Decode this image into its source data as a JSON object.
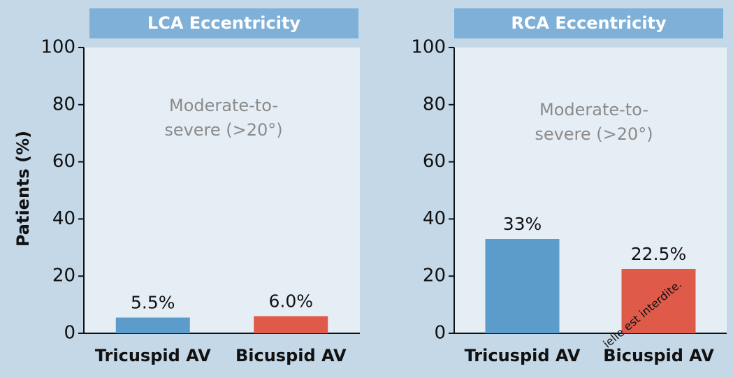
{
  "chart_data": [
    {
      "type": "bar",
      "title": "LCA Eccentricity",
      "ylabel": "Patients (%)",
      "annotation": [
        "Moderate-to-",
        "severe (>20°)"
      ],
      "categories": [
        "Tricuspid AV",
        "Bicuspid AV"
      ],
      "values": [
        5.5,
        6.0
      ],
      "value_labels": [
        "5.5%",
        "6.0%"
      ],
      "colors": [
        "#5b9ccb",
        "#e05a4a"
      ],
      "ylim": [
        0,
        100
      ],
      "yticks": [
        0,
        20,
        40,
        60,
        80,
        100
      ]
    },
    {
      "type": "bar",
      "title": "RCA Eccentricity",
      "annotation": [
        "Moderate-to-",
        "severe (>20°)"
      ],
      "categories": [
        "Tricuspid AV",
        "Bicuspid AV"
      ],
      "values": [
        33,
        22.5
      ],
      "value_labels": [
        "33%",
        "22.5%"
      ],
      "colors": [
        "#5b9ccb",
        "#e05a4a"
      ],
      "ylim": [
        0,
        100
      ],
      "yticks": [
        0,
        20,
        40,
        60,
        80,
        100
      ]
    }
  ],
  "watermark": "ielle est interdite."
}
